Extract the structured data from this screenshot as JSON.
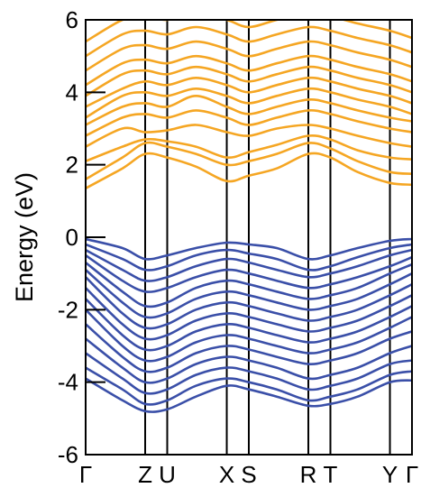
{
  "chart_data": {
    "type": "line",
    "title": "",
    "xlabel": "",
    "ylabel": "Energy (eV)",
    "ylim": [
      -6,
      6
    ],
    "yticks": [
      -6,
      -4,
      -2,
      0,
      2,
      4,
      6
    ],
    "k_points": [
      {
        "label": "Γ",
        "x": 0
      },
      {
        "label": "Z",
        "x": 1.62
      },
      {
        "label": "U",
        "x": 2.22
      },
      {
        "label": "X",
        "x": 3.84
      },
      {
        "label": "S",
        "x": 4.44
      },
      {
        "label": "R",
        "x": 6.06
      },
      {
        "label": "T",
        "x": 6.66
      },
      {
        "label": "Y",
        "x": 8.28
      },
      {
        "label": "Γ",
        "x": 8.88
      }
    ],
    "colors": {
      "valence": "#3a4fa8",
      "conduction": "#f5a623"
    },
    "series": [
      {
        "group": "conduction",
        "x": [
          0,
          1,
          1.62,
          2.22,
          3,
          3.84,
          4.44,
          5.2,
          6.06,
          6.66,
          7.4,
          8.28,
          8.88
        ],
        "y": [
          1.35,
          1.9,
          2.3,
          2.2,
          1.95,
          1.55,
          1.7,
          1.9,
          2.3,
          2.2,
          1.8,
          1.5,
          1.45
        ]
      },
      {
        "group": "conduction",
        "x": [
          0,
          1,
          1.62,
          2.22,
          3,
          3.84,
          4.44,
          5.2,
          6.06,
          6.66,
          7.4,
          8.28,
          8.88
        ],
        "y": [
          1.6,
          2.2,
          2.6,
          2.5,
          2.3,
          2.0,
          2.1,
          2.3,
          2.6,
          2.45,
          2.1,
          1.8,
          1.75
        ]
      },
      {
        "group": "conduction",
        "x": [
          0,
          1,
          1.62,
          2.22,
          3,
          3.84,
          4.44,
          5.2,
          6.06,
          6.66,
          7.4,
          8.28,
          8.88
        ],
        "y": [
          2.1,
          2.5,
          2.7,
          2.65,
          2.5,
          2.2,
          2.35,
          2.55,
          2.8,
          2.7,
          2.4,
          2.2,
          2.15
        ]
      },
      {
        "group": "conduction",
        "x": [
          0,
          1,
          1.62,
          2.22,
          3,
          3.84,
          4.44,
          5.2,
          6.06,
          6.66,
          7.4,
          8.28,
          8.88
        ],
        "y": [
          2.5,
          3.0,
          2.9,
          2.95,
          3.1,
          2.9,
          2.8,
          3.0,
          3.1,
          3.0,
          2.8,
          2.6,
          2.5
        ]
      },
      {
        "group": "conduction",
        "x": [
          0,
          1,
          1.62,
          2.22,
          3,
          3.84,
          4.44,
          5.2,
          6.06,
          6.66,
          7.4,
          8.28,
          8.88
        ],
        "y": [
          2.8,
          3.3,
          3.4,
          3.3,
          3.5,
          3.3,
          3.1,
          3.3,
          3.5,
          3.4,
          3.2,
          3.0,
          2.9
        ]
      },
      {
        "group": "conduction",
        "x": [
          0,
          1,
          1.62,
          2.22,
          3,
          3.84,
          4.44,
          5.2,
          6.06,
          6.66,
          7.4,
          8.28,
          8.88
        ],
        "y": [
          3.1,
          3.6,
          3.7,
          3.6,
          3.9,
          3.6,
          3.4,
          3.6,
          3.8,
          3.7,
          3.5,
          3.3,
          3.2
        ]
      },
      {
        "group": "conduction",
        "x": [
          0,
          1,
          1.62,
          2.22,
          3,
          3.84,
          4.44,
          5.2,
          6.06,
          6.66,
          7.4,
          8.28,
          8.88
        ],
        "y": [
          3.3,
          3.9,
          4.0,
          3.9,
          4.1,
          3.9,
          3.7,
          3.9,
          4.1,
          4.0,
          3.8,
          3.6,
          3.4
        ]
      },
      {
        "group": "conduction",
        "x": [
          0,
          1,
          1.62,
          2.22,
          3,
          3.84,
          4.44,
          5.2,
          6.06,
          6.66,
          7.4,
          8.28,
          8.88
        ],
        "y": [
          3.6,
          4.1,
          4.3,
          4.2,
          4.4,
          4.2,
          4.0,
          4.2,
          4.4,
          4.3,
          4.1,
          3.9,
          3.7
        ]
      },
      {
        "group": "conduction",
        "x": [
          0,
          1,
          1.62,
          2.22,
          3,
          3.84,
          4.44,
          5.2,
          6.06,
          6.66,
          7.4,
          8.28,
          8.88
        ],
        "y": [
          3.9,
          4.5,
          4.6,
          4.5,
          4.7,
          4.5,
          4.3,
          4.5,
          4.7,
          4.6,
          4.4,
          4.2,
          4.0
        ]
      },
      {
        "group": "conduction",
        "x": [
          0,
          1,
          1.62,
          2.22,
          3,
          3.84,
          4.44,
          5.2,
          6.06,
          6.66,
          7.4,
          8.28,
          8.88
        ],
        "y": [
          4.2,
          4.8,
          4.9,
          4.8,
          5.0,
          4.8,
          4.6,
          4.8,
          5.0,
          4.9,
          4.7,
          4.5,
          4.3
        ]
      },
      {
        "group": "conduction",
        "x": [
          0,
          1,
          1.62,
          2.22,
          3,
          3.84,
          4.44,
          5.2,
          6.06,
          6.66,
          7.4,
          8.28,
          8.88
        ],
        "y": [
          4.6,
          5.2,
          5.3,
          5.2,
          5.4,
          5.2,
          5.0,
          5.2,
          5.4,
          5.3,
          5.1,
          4.9,
          4.7
        ]
      },
      {
        "group": "conduction",
        "x": [
          0,
          1,
          1.62,
          2.22,
          3,
          3.84,
          4.44,
          5.2,
          6.06,
          6.66,
          7.4,
          8.28,
          8.88
        ],
        "y": [
          5.0,
          5.6,
          5.7,
          5.6,
          5.8,
          5.6,
          5.4,
          5.6,
          5.8,
          5.7,
          5.5,
          5.3,
          5.1
        ]
      },
      {
        "group": "conduction",
        "x": [
          0,
          1,
          1.62,
          2.22,
          3,
          3.84,
          4.44,
          5.2,
          6.06,
          6.66,
          7.4,
          8.28,
          8.88
        ],
        "y": [
          5.4,
          6.0,
          6.1,
          6.0,
          6.2,
          6.0,
          5.8,
          6.0,
          6.2,
          6.1,
          5.9,
          5.7,
          5.5
        ]
      },
      {
        "group": "valence",
        "x": [
          0,
          1,
          1.62,
          2.22,
          3,
          3.84,
          4.44,
          5.2,
          6.06,
          6.66,
          7.4,
          8.28,
          8.88
        ],
        "y": [
          -0.05,
          -0.3,
          -0.6,
          -0.5,
          -0.3,
          -0.15,
          -0.2,
          -0.3,
          -0.6,
          -0.5,
          -0.3,
          -0.1,
          -0.05
        ]
      },
      {
        "group": "valence",
        "x": [
          0,
          1,
          1.62,
          2.22,
          3,
          3.84,
          4.44,
          5.2,
          6.06,
          6.66,
          7.4,
          8.28,
          8.88
        ],
        "y": [
          -0.2,
          -0.6,
          -0.9,
          -0.8,
          -0.5,
          -0.35,
          -0.45,
          -0.6,
          -0.9,
          -0.8,
          -0.55,
          -0.3,
          -0.2
        ]
      },
      {
        "group": "valence",
        "x": [
          0,
          1,
          1.62,
          2.22,
          3,
          3.84,
          4.44,
          5.2,
          6.06,
          6.66,
          7.4,
          8.28,
          8.88
        ],
        "y": [
          -0.35,
          -0.9,
          -1.2,
          -1.1,
          -0.8,
          -0.6,
          -0.7,
          -0.9,
          -1.1,
          -1.0,
          -0.8,
          -0.5,
          -0.35
        ]
      },
      {
        "group": "valence",
        "x": [
          0,
          1,
          1.62,
          2.22,
          3,
          3.84,
          4.44,
          5.2,
          6.06,
          6.66,
          7.4,
          8.28,
          8.88
        ],
        "y": [
          -0.5,
          -1.2,
          -1.5,
          -1.4,
          -1.1,
          -0.9,
          -1.0,
          -1.2,
          -1.4,
          -1.3,
          -1.1,
          -0.8,
          -0.55
        ]
      },
      {
        "group": "valence",
        "x": [
          0,
          1,
          1.62,
          2.22,
          3,
          3.84,
          4.44,
          5.2,
          6.06,
          6.66,
          7.4,
          8.28,
          8.88
        ],
        "y": [
          -0.7,
          -1.5,
          -1.9,
          -1.8,
          -1.4,
          -1.2,
          -1.3,
          -1.5,
          -1.7,
          -1.6,
          -1.4,
          -1.0,
          -0.75
        ]
      },
      {
        "group": "valence",
        "x": [
          0,
          1,
          1.62,
          2.22,
          3,
          3.84,
          4.44,
          5.2,
          6.06,
          6.66,
          7.4,
          8.28,
          8.88
        ],
        "y": [
          -0.9,
          -1.8,
          -2.2,
          -2.1,
          -1.7,
          -1.5,
          -1.6,
          -1.8,
          -2.0,
          -1.9,
          -1.7,
          -1.3,
          -1.0
        ]
      },
      {
        "group": "valence",
        "x": [
          0,
          1,
          1.62,
          2.22,
          3,
          3.84,
          4.44,
          5.2,
          6.06,
          6.66,
          7.4,
          8.28,
          8.88
        ],
        "y": [
          -1.1,
          -2.1,
          -2.5,
          -2.4,
          -2.0,
          -1.8,
          -1.9,
          -2.1,
          -2.3,
          -2.2,
          -2.0,
          -1.6,
          -1.3
        ]
      },
      {
        "group": "valence",
        "x": [
          0,
          1,
          1.62,
          2.22,
          3,
          3.84,
          4.44,
          5.2,
          6.06,
          6.66,
          7.4,
          8.28,
          8.88
        ],
        "y": [
          -1.4,
          -2.4,
          -2.8,
          -2.7,
          -2.3,
          -2.1,
          -2.2,
          -2.4,
          -2.6,
          -2.5,
          -2.3,
          -1.9,
          -1.6
        ]
      },
      {
        "group": "valence",
        "x": [
          0,
          1,
          1.62,
          2.22,
          3,
          3.84,
          4.44,
          5.2,
          6.06,
          6.66,
          7.4,
          8.28,
          8.88
        ],
        "y": [
          -1.7,
          -2.7,
          -3.1,
          -3.0,
          -2.6,
          -2.4,
          -2.5,
          -2.7,
          -2.9,
          -2.8,
          -2.6,
          -2.2,
          -1.9
        ]
      },
      {
        "group": "valence",
        "x": [
          0,
          1,
          1.62,
          2.22,
          3,
          3.84,
          4.44,
          5.2,
          6.06,
          6.66,
          7.4,
          8.28,
          8.88
        ],
        "y": [
          -2.0,
          -3.0,
          -3.4,
          -3.3,
          -2.9,
          -2.7,
          -2.8,
          -3.0,
          -3.2,
          -3.1,
          -2.9,
          -2.5,
          -2.2
        ]
      },
      {
        "group": "valence",
        "x": [
          0,
          1,
          1.62,
          2.22,
          3,
          3.84,
          4.44,
          5.2,
          6.06,
          6.66,
          7.4,
          8.28,
          8.88
        ],
        "y": [
          -2.4,
          -3.3,
          -3.7,
          -3.6,
          -3.2,
          -3.0,
          -3.1,
          -3.3,
          -3.5,
          -3.4,
          -3.2,
          -2.8,
          -2.6
        ]
      },
      {
        "group": "valence",
        "x": [
          0,
          1,
          1.62,
          2.22,
          3,
          3.84,
          4.44,
          5.2,
          6.06,
          6.66,
          7.4,
          8.28,
          8.88
        ],
        "y": [
          -2.8,
          -3.6,
          -4.0,
          -3.9,
          -3.5,
          -3.3,
          -3.4,
          -3.6,
          -3.9,
          -3.8,
          -3.6,
          -3.2,
          -3.0
        ]
      },
      {
        "group": "valence",
        "x": [
          0,
          1,
          1.62,
          2.22,
          3,
          3.84,
          4.44,
          5.2,
          6.06,
          6.66,
          7.4,
          8.28,
          8.88
        ],
        "y": [
          -3.2,
          -3.9,
          -4.3,
          -4.2,
          -3.8,
          -3.6,
          -3.7,
          -3.9,
          -4.2,
          -4.1,
          -3.9,
          -3.5,
          -3.4
        ]
      },
      {
        "group": "valence",
        "x": [
          0,
          1,
          1.62,
          2.22,
          3,
          3.84,
          4.44,
          5.2,
          6.06,
          6.66,
          7.4,
          8.28,
          8.88
        ],
        "y": [
          -3.6,
          -4.2,
          -4.6,
          -4.5,
          -4.1,
          -3.9,
          -4.0,
          -4.2,
          -4.5,
          -4.4,
          -4.2,
          -3.8,
          -3.7
        ]
      },
      {
        "group": "valence",
        "x": [
          0,
          1,
          1.62,
          2.22,
          3,
          3.84,
          4.44,
          5.2,
          6.06,
          6.66,
          7.4,
          8.28,
          8.88
        ],
        "y": [
          -3.9,
          -4.5,
          -4.8,
          -4.75,
          -4.4,
          -4.1,
          -4.2,
          -4.4,
          -4.65,
          -4.6,
          -4.4,
          -4.0,
          -3.95
        ]
      }
    ]
  }
}
